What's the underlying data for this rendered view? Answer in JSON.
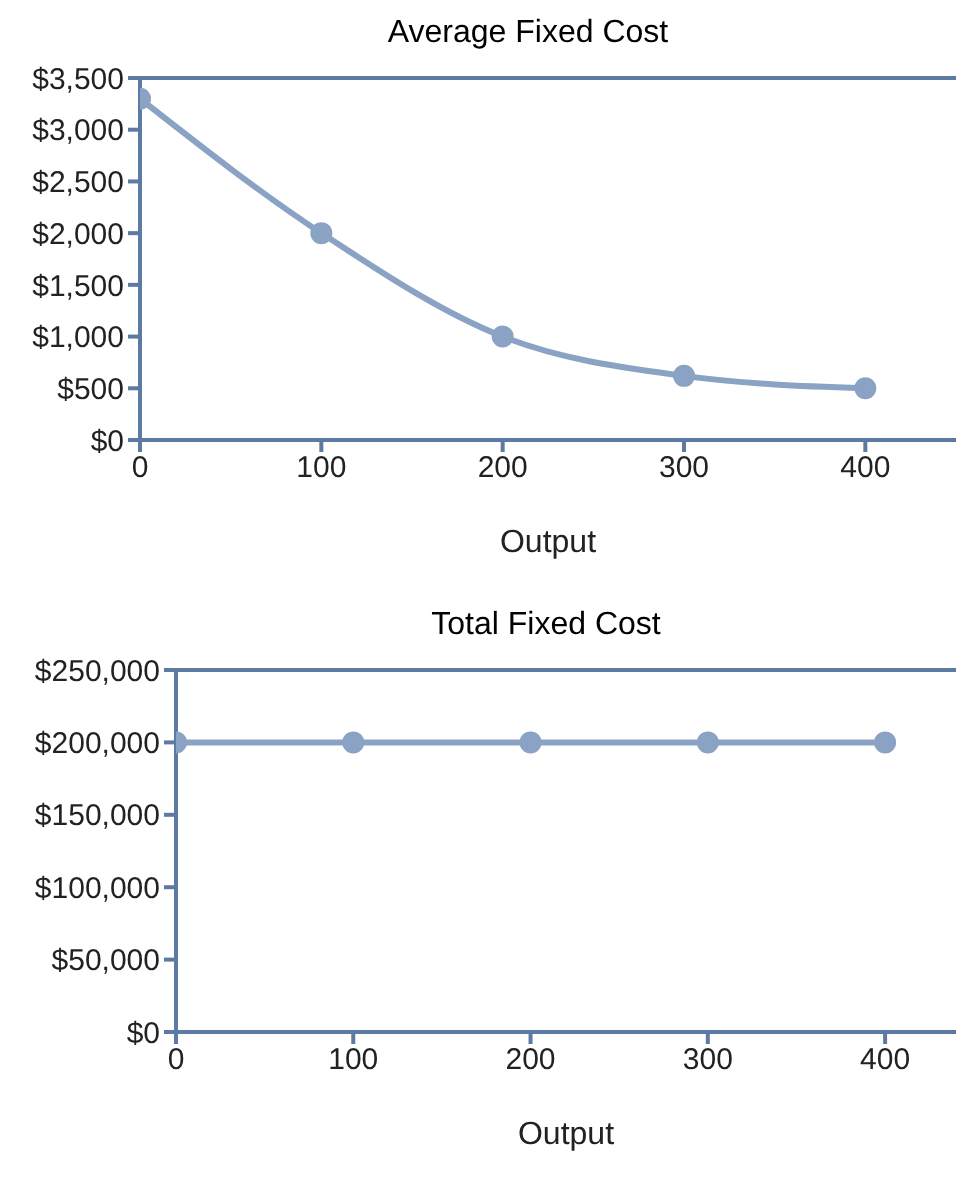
{
  "chart_data": [
    {
      "type": "line",
      "title": "Average Fixed Cost",
      "xlabel": "Output",
      "x": [
        0,
        100,
        200,
        300,
        400
      ],
      "values": [
        3300,
        2000,
        1000,
        620,
        500
      ],
      "color": "#8aa3c4",
      "xlim": [
        0,
        450
      ],
      "xticks": [
        0,
        100,
        200,
        300,
        400
      ],
      "ylim": [
        0,
        3500
      ],
      "yticks": [
        {
          "value": 0,
          "label": "$0"
        },
        {
          "value": 500,
          "label": "$500"
        },
        {
          "value": 1000,
          "label": "$1,000"
        },
        {
          "value": 1500,
          "label": "$1,500"
        },
        {
          "value": 2000,
          "label": "$2,000"
        },
        {
          "value": 2500,
          "label": "$2,500"
        },
        {
          "value": 3000,
          "label": "$3,000"
        },
        {
          "value": 3500,
          "label": "$3,500"
        }
      ],
      "marker": "circle",
      "grid": false,
      "legend": false
    },
    {
      "type": "line",
      "title": "Total Fixed Cost",
      "xlabel": "Output",
      "x": [
        0,
        100,
        200,
        300,
        400
      ],
      "values": [
        200000,
        200000,
        200000,
        200000,
        200000
      ],
      "color": "#8aa3c4",
      "xlim": [
        0,
        440
      ],
      "xticks": [
        0,
        100,
        200,
        300,
        400
      ],
      "ylim": [
        0,
        250000
      ],
      "yticks": [
        {
          "value": 0,
          "label": "$0"
        },
        {
          "value": 50000,
          "label": "$50,000"
        },
        {
          "value": 100000,
          "label": "$100,000"
        },
        {
          "value": 150000,
          "label": "$150,000"
        },
        {
          "value": 200000,
          "label": "$200,000"
        },
        {
          "value": 250000,
          "label": "$250,000"
        }
      ],
      "marker": "circle",
      "grid": false,
      "legend": false
    }
  ]
}
